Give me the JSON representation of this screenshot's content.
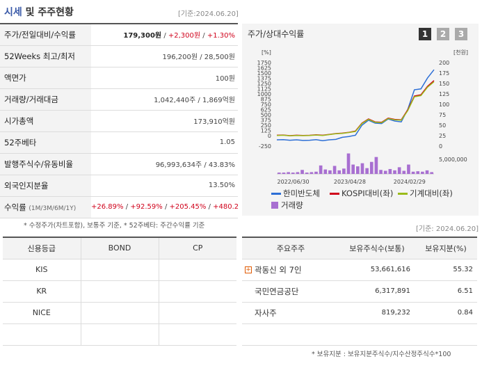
{
  "header": {
    "title_a": "시세",
    "title_b": "및 주주현황",
    "date": "[기준:2024.06.20]"
  },
  "summary": {
    "rows": [
      {
        "label": "주가/전일대비/수익률",
        "v1": "179,300원",
        "v2": "+2,300원",
        "v3": "+1.30%"
      },
      {
        "label": "52Weeks 최고/최저",
        "value": "196,200원 / 28,500원"
      },
      {
        "label": "액면가",
        "value": "100원"
      },
      {
        "label": "거래량/거래대금",
        "value": "1,042,440주 / 1,869억원"
      },
      {
        "label": "시가총액",
        "value": "173,910억원"
      },
      {
        "label": "52주베타",
        "value": "1.05"
      },
      {
        "label": "발행주식수/유동비율",
        "value": "96,993,634주 / 43.83%"
      },
      {
        "label": "외국인지분율",
        "value": "13.50%"
      },
      {
        "label": "수익률",
        "sub": "(1M/3M/6M/1Y)",
        "r1": "+26.89%",
        "r2": "+92.59%",
        "r3": "+205.45%",
        "r4": "+480.26%"
      }
    ],
    "sep": "/"
  },
  "footnote1": "* 수정주가(차트포함), 보통주 기준, * 52주베타: 주간수익률 기준",
  "chart_panel": {
    "title": "주가/상대수익률",
    "pages": [
      "1",
      "2",
      "3"
    ],
    "left_unit": "[%]",
    "right_unit": "[천원]",
    "vol_tick": "5,000,000",
    "legend": {
      "s1": "한미반도체",
      "s2": "KOSPI대비(좌)",
      "s3": "기계대비(좌)",
      "s4": "거래량"
    }
  },
  "chart_data": {
    "type": "line",
    "x_ticks": [
      "2022/06/30",
      "2023/04/28",
      "2024/02/29"
    ],
    "y_left": {
      "ticks": [
        -250,
        0,
        125,
        250,
        375,
        500,
        625,
        750,
        875,
        1000,
        1125,
        1250,
        1375,
        1500,
        1625,
        1750
      ],
      "range": [
        -250,
        1750
      ]
    },
    "y_right": {
      "ticks": [
        0,
        12.5,
        25,
        37.5,
        50,
        62.5,
        75,
        87.5,
        100,
        112.5,
        125,
        137.5,
        150,
        162.5,
        175,
        187.5,
        200
      ],
      "range": [
        0,
        200
      ]
    },
    "series": [
      {
        "name": "한미반도체",
        "color": "#2d6fd6",
        "values": [
          -100,
          -95,
          -110,
          -100,
          -115,
          -110,
          -95,
          -120,
          -100,
          -90,
          -40,
          -20,
          10,
          250,
          370,
          300,
          290,
          400,
          350,
          330,
          630,
          1100,
          1120,
          1380,
          1580
        ]
      },
      {
        "name": "KOSPI대비(좌)",
        "color": "#d0021b",
        "values": [
          10,
          15,
          0,
          10,
          5,
          8,
          20,
          10,
          30,
          50,
          60,
          80,
          110,
          300,
          400,
          330,
          320,
          420,
          390,
          380,
          620,
          950,
          980,
          1180,
          1320
        ]
      },
      {
        "name": "기계대비(좌)",
        "color": "#9bbb1a",
        "values": [
          5,
          10,
          -5,
          5,
          0,
          5,
          15,
          5,
          25,
          45,
          55,
          75,
          100,
          290,
          390,
          320,
          310,
          410,
          380,
          370,
          600,
          930,
          960,
          1160,
          1290
        ]
      }
    ],
    "volume": {
      "name": "거래량",
      "color": "#a86fd1",
      "values": [
        0.3,
        0.3,
        0.4,
        0.3,
        0.4,
        0.9,
        0.3,
        0.4,
        0.5,
        1.9,
        1.0,
        0.8,
        1.8,
        0.8,
        1.2,
        4.6,
        2.1,
        1.7,
        2.4,
        1.3,
        2.7,
        3.8,
        0.9,
        0.7,
        1.1,
        0.8,
        1.5,
        0.7,
        2.1,
        0.5,
        0.6,
        0.5,
        0.8,
        0.4
      ]
    }
  },
  "date2": "[기준: 2024.06.20]",
  "ratings": {
    "headers": [
      "신용등급",
      "BOND",
      "CP"
    ],
    "rows": [
      [
        "KIS",
        "",
        ""
      ],
      [
        "KR",
        "",
        ""
      ],
      [
        "NICE",
        "",
        ""
      ],
      [
        "",
        "",
        ""
      ]
    ]
  },
  "holders": {
    "headers": [
      "주요주주",
      "보유주식수(보통)",
      "보유지분(%)"
    ],
    "rows": [
      {
        "name": "곽동신 외 7인",
        "shares": "53,661,616",
        "pct": "55.32",
        "expand": "+"
      },
      {
        "name": "국민연금공단",
        "shares": "6,317,891",
        "pct": "6.51"
      },
      {
        "name": "자사주",
        "shares": "819,232",
        "pct": "0.84"
      },
      {
        "name": "",
        "shares": "",
        "pct": ""
      }
    ]
  },
  "footnote2": "* 보유지분 : 보유지분주식수/지수산정주식수*100"
}
